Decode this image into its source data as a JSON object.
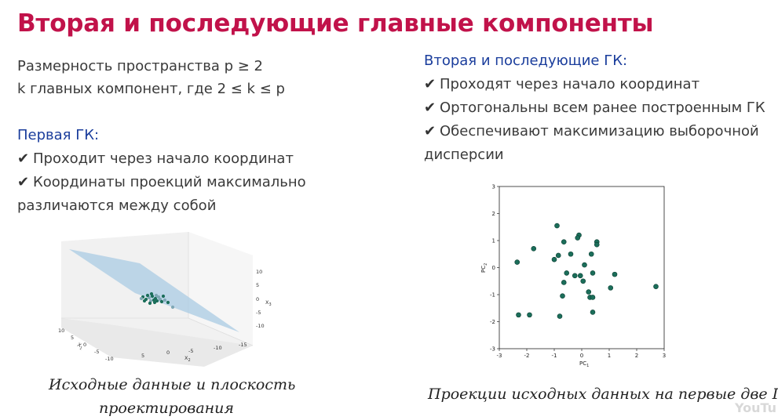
{
  "title": "Вторая и последующие главные компоненты",
  "left": {
    "line1": "Размерность пространства  p ≥ 2",
    "line2": "k главных компонент, где 2 ≤ k ≤ p",
    "first_pc_heading": "Первая ГК:",
    "check_glyph": "✔",
    "item1": "Проходит через начало координат",
    "item2a": "Координаты проекций максимально",
    "item2b": "различаются между собой"
  },
  "right": {
    "heading": "Вторая и последующие ГК:",
    "item1": "Проходят через начало координат",
    "item2": "Ортогональны всем ранее построенным ГК",
    "item3a": "Обеспечивают максимизацию выборочной",
    "item3b": "дисперсии"
  },
  "captions": {
    "left_line1": "Исходные данные и плоскость",
    "left_line2": "проектирования",
    "right": "Проекции исходных данных на первые две ГК"
  },
  "watermark": "YouTu",
  "colors": {
    "title": "#c1124a",
    "blue_heading": "#1a3d9c",
    "points": "#1b6e5a",
    "plane": "#a9cbe3"
  },
  "chart_data": [
    {
      "type": "scatter",
      "xlabel": "PC",
      "xlabel_sub": "1",
      "ylabel": "PC",
      "ylabel_sub": "2",
      "xlim": [
        -3,
        3
      ],
      "ylim": [
        -3,
        3
      ],
      "xticks": [
        "-3",
        "-2",
        "-1",
        "0",
        "1",
        "2",
        "3"
      ],
      "yticks": [
        "-3",
        "-2",
        "-1",
        "0",
        "1",
        "2",
        "3"
      ],
      "points": [
        [
          -0.9,
          1.55
        ],
        [
          -0.1,
          1.2
        ],
        [
          -0.15,
          1.1
        ],
        [
          -0.65,
          0.95
        ],
        [
          0.55,
          0.95
        ],
        [
          0.55,
          0.85
        ],
        [
          -1.75,
          0.7
        ],
        [
          -0.4,
          0.5
        ],
        [
          -0.85,
          0.45
        ],
        [
          0.35,
          0.5
        ],
        [
          -1.0,
          0.3
        ],
        [
          -2.35,
          0.2
        ],
        [
          0.1,
          0.1
        ],
        [
          -0.55,
          -0.2
        ],
        [
          0.4,
          -0.2
        ],
        [
          -0.25,
          -0.3
        ],
        [
          -0.05,
          -0.3
        ],
        [
          1.2,
          -0.25
        ],
        [
          0.05,
          -0.5
        ],
        [
          -0.65,
          -0.55
        ],
        [
          2.7,
          -0.7
        ],
        [
          1.05,
          -0.75
        ],
        [
          0.25,
          -0.9
        ],
        [
          -0.7,
          -1.05
        ],
        [
          0.3,
          -1.1
        ],
        [
          0.4,
          -1.1
        ],
        [
          0.4,
          -1.65
        ],
        [
          -2.3,
          -1.75
        ],
        [
          -1.9,
          -1.75
        ],
        [
          -0.8,
          -1.8
        ]
      ]
    },
    {
      "type": "scatter",
      "title": "",
      "zlabel": "X",
      "zlabel_sub": "3",
      "xlabel": "X",
      "xlabel_sub": "2",
      "ylabel": "X",
      "ylabel_sub": "1",
      "zticks": [
        "10",
        "5",
        "0",
        "-5",
        "-10"
      ],
      "xticks": [
        "5",
        "0",
        "-5",
        "-10",
        "-15"
      ],
      "yticks": [
        "10",
        "5",
        "0",
        "-5",
        "-10"
      ],
      "points_count": 22
    }
  ]
}
